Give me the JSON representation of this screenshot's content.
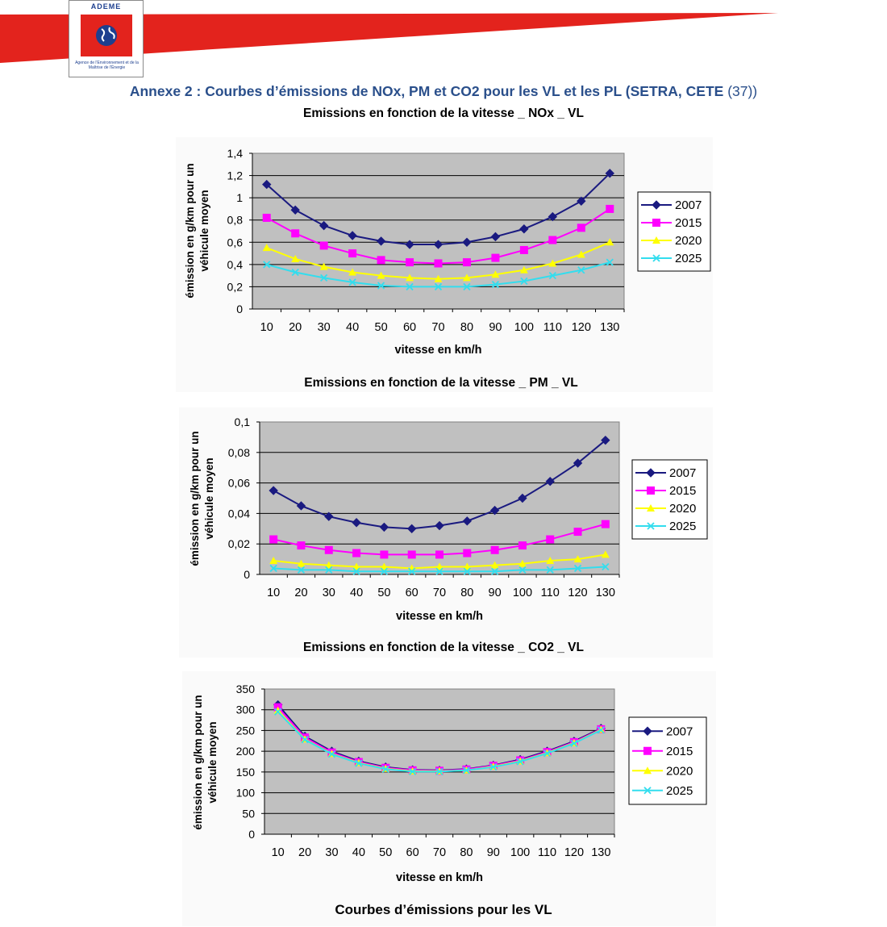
{
  "header": {
    "logo_name": "ADEME",
    "logo_tagline": "Agence de l'Environnement et de la Maîtrise de l'Énergie",
    "brand_red": "#e3231d",
    "brand_blue": "#1d3f8f"
  },
  "page": {
    "title": "Annexe 2 : Courbes d’émissions de NOx, PM et CO2 pour les VL et les PL (SETRA, CETE ",
    "title_ref": "(37))",
    "caption": "Courbes d’émissions pour les VL"
  },
  "legend_styles": [
    {
      "name": "2007",
      "color": "#1a1a80",
      "marker": "diamond"
    },
    {
      "name": "2015",
      "color": "#ff00ff",
      "marker": "square"
    },
    {
      "name": "2020",
      "color": "#ffff00",
      "marker": "triangle"
    },
    {
      "name": "2025",
      "color": "#33ddee",
      "marker": "x"
    }
  ],
  "chart_data": [
    {
      "type": "line",
      "title": "Emissions en fonction de la vitesse _ NOx _ VL",
      "xlabel": "vitesse en km/h",
      "ylabel": [
        "émission en g/km  pour un",
        "véhicule moyen"
      ],
      "categories": [
        "10",
        "20",
        "30",
        "40",
        "50",
        "60",
        "70",
        "80",
        "90",
        "100",
        "110",
        "120",
        "130"
      ],
      "ylim": [
        0,
        1.4
      ],
      "ytick_labels": [
        "0",
        "0,2",
        "0,4",
        "0,6",
        "0,8",
        "1",
        "1,2",
        "1,4"
      ],
      "grid": true,
      "legend": "right",
      "series": [
        {
          "name": "2007",
          "values": [
            1.12,
            0.89,
            0.75,
            0.66,
            0.61,
            0.58,
            0.58,
            0.6,
            0.65,
            0.72,
            0.83,
            0.97,
            1.22
          ]
        },
        {
          "name": "2015",
          "values": [
            0.82,
            0.68,
            0.57,
            0.5,
            0.44,
            0.42,
            0.41,
            0.42,
            0.46,
            0.53,
            0.62,
            0.73,
            0.9
          ]
        },
        {
          "name": "2020",
          "values": [
            0.55,
            0.45,
            0.38,
            0.33,
            0.3,
            0.28,
            0.27,
            0.28,
            0.31,
            0.35,
            0.41,
            0.49,
            0.6
          ]
        },
        {
          "name": "2025",
          "values": [
            0.4,
            0.33,
            0.28,
            0.24,
            0.21,
            0.2,
            0.2,
            0.2,
            0.22,
            0.25,
            0.3,
            0.35,
            0.42
          ]
        }
      ]
    },
    {
      "type": "line",
      "title": "Emissions en fonction de la vitesse _ PM _ VL",
      "xlabel": "vitesse en km/h",
      "ylabel": [
        "émission en g/km pour un",
        "véhicule moyen"
      ],
      "categories": [
        "10",
        "20",
        "30",
        "40",
        "50",
        "60",
        "70",
        "80",
        "90",
        "100",
        "110",
        "120",
        "130"
      ],
      "ylim": [
        0,
        0.1
      ],
      "ytick_labels": [
        "0",
        "0,02",
        "0,04",
        "0,06",
        "0,08",
        "0,1"
      ],
      "grid": true,
      "legend": "right",
      "series": [
        {
          "name": "2007",
          "values": [
            0.055,
            0.045,
            0.038,
            0.034,
            0.031,
            0.03,
            0.032,
            0.035,
            0.042,
            0.05,
            0.061,
            0.073,
            0.088
          ]
        },
        {
          "name": "2015",
          "values": [
            0.023,
            0.019,
            0.016,
            0.014,
            0.013,
            0.013,
            0.013,
            0.014,
            0.016,
            0.019,
            0.023,
            0.028,
            0.033
          ]
        },
        {
          "name": "2020",
          "values": [
            0.009,
            0.007,
            0.006,
            0.005,
            0.005,
            0.004,
            0.005,
            0.005,
            0.006,
            0.007,
            0.009,
            0.01,
            0.013
          ]
        },
        {
          "name": "2025",
          "values": [
            0.004,
            0.003,
            0.003,
            0.002,
            0.002,
            0.002,
            0.002,
            0.002,
            0.002,
            0.003,
            0.003,
            0.004,
            0.005
          ]
        }
      ]
    },
    {
      "type": "line",
      "title": "Emissions en fonction de la vitesse _ CO2 _ VL",
      "xlabel": "vitesse en km/h",
      "ylabel": [
        "émission en g/km pour un",
        "véhicule moyen"
      ],
      "categories": [
        "10",
        "20",
        "30",
        "40",
        "50",
        "60",
        "70",
        "80",
        "90",
        "100",
        "110",
        "120",
        "130"
      ],
      "ylim": [
        0,
        350
      ],
      "ytick_labels": [
        "0",
        "50",
        "100",
        "150",
        "200",
        "250",
        "300",
        "350"
      ],
      "grid": true,
      "legend": "right",
      "series": [
        {
          "name": "2007",
          "values": [
            312,
            236,
            200,
            176,
            162,
            155,
            154,
            157,
            166,
            180,
            200,
            224,
            255
          ]
        },
        {
          "name": "2015",
          "values": [
            306,
            233,
            197,
            174,
            160,
            154,
            153,
            156,
            165,
            178,
            198,
            222,
            253
          ]
        },
        {
          "name": "2020",
          "values": [
            298,
            229,
            194,
            172,
            158,
            152,
            152,
            154,
            163,
            176,
            196,
            220,
            252
          ]
        },
        {
          "name": "2025",
          "values": [
            295,
            228,
            193,
            171,
            157,
            151,
            151,
            154,
            162,
            175,
            195,
            219,
            251
          ]
        }
      ]
    }
  ]
}
